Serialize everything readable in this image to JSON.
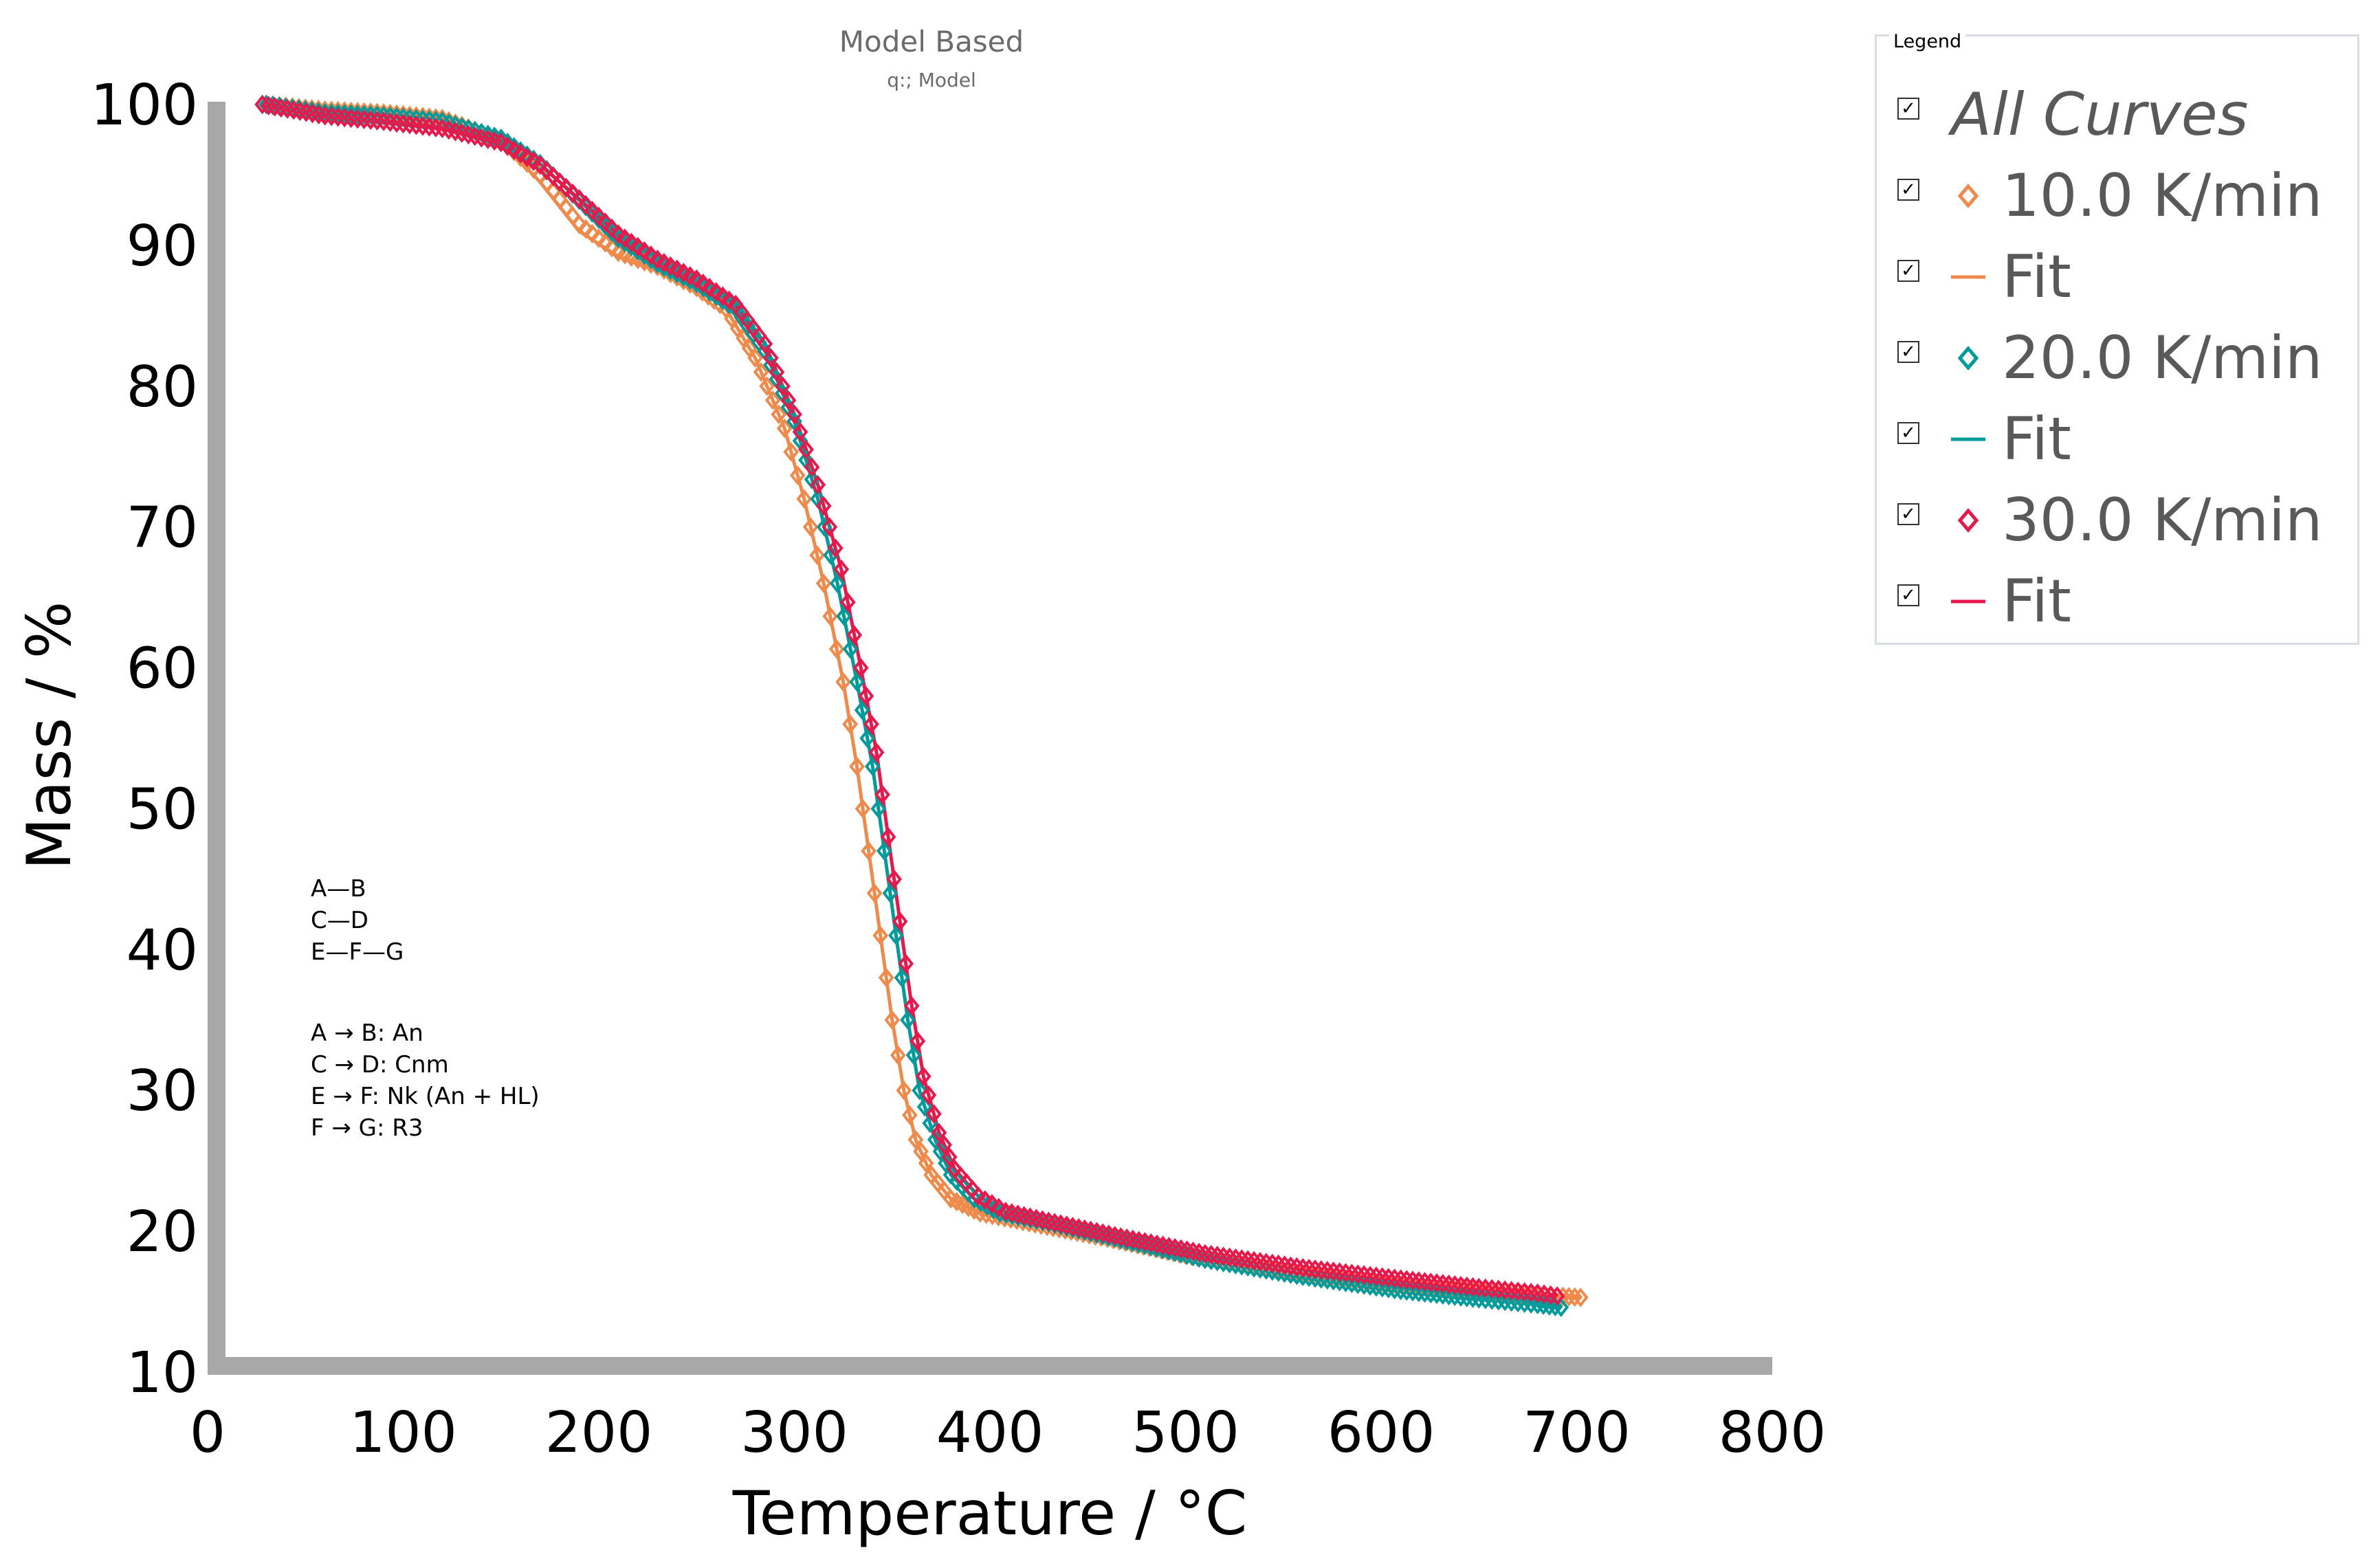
{
  "chart_data": {
    "type": "scatter",
    "title": "Model Based",
    "subtitle": "q:; Model",
    "xlabel": "Temperature / °C",
    "ylabel": "Mass / %",
    "xlim": [
      0,
      800
    ],
    "ylim": [
      10,
      100
    ],
    "xticks": [
      0,
      100,
      200,
      300,
      400,
      500,
      600,
      700,
      800
    ],
    "yticks": [
      10,
      20,
      30,
      40,
      50,
      60,
      70,
      80,
      90,
      100
    ],
    "grid": false,
    "legend_position": "top-right",
    "annotations": {
      "scheme": [
        "A—B",
        "C—D",
        "E—F—G"
      ],
      "steps": [
        "A → B: An",
        "C → D: Cnm",
        "E → F: Nk (An + HL)",
        "F → G: R3"
      ]
    },
    "series": [
      {
        "name": "10.0 K/min",
        "kind": "measured",
        "marker": "diamond",
        "color": "#f08a4b",
        "x": [
          30,
          60,
          90,
          120,
          150,
          170,
          190,
          210,
          230,
          250,
          265,
          280,
          295,
          305,
          315,
          325,
          332,
          338,
          344,
          350,
          356,
          362,
          370,
          380,
          395,
          420,
          460,
          500,
          550,
          600,
          650,
          690,
          702
        ],
        "y": [
          100,
          99.6,
          99.4,
          99,
          97.5,
          95,
          91.5,
          89.5,
          88.5,
          87,
          85.5,
          82,
          77,
          72,
          66,
          59,
          53,
          47,
          41,
          35,
          30,
          26.5,
          24,
          22.3,
          21.3,
          20.6,
          19.5,
          18.3,
          17.2,
          16.3,
          15.7,
          15.4,
          15.3
        ]
      },
      {
        "name": "Fit",
        "kind": "fit",
        "color": "#f08a4b",
        "x": [
          30,
          60,
          90,
          120,
          150,
          170,
          190,
          210,
          230,
          250,
          265,
          280,
          295,
          305,
          315,
          325,
          332,
          338,
          344,
          350,
          356,
          362,
          370,
          380,
          395,
          420,
          460,
          500,
          550,
          600,
          650,
          690,
          702
        ],
        "y": [
          100,
          99.6,
          99.4,
          99,
          97.4,
          94.5,
          91,
          89.2,
          88.3,
          87,
          85.5,
          82,
          77,
          72,
          66,
          59,
          53,
          47,
          41,
          35,
          30,
          26.5,
          24,
          22.3,
          21.3,
          20.6,
          19.5,
          18.3,
          17.2,
          16.3,
          15.7,
          15.4,
          15.3
        ]
      },
      {
        "name": "20.0 K/min",
        "kind": "measured",
        "marker": "diamond",
        "color": "#009b9b",
        "x": [
          30,
          60,
          90,
          120,
          150,
          170,
          190,
          210,
          230,
          250,
          270,
          285,
          300,
          312,
          322,
          332,
          340,
          346,
          352,
          358,
          364,
          372,
          380,
          392,
          405,
          430,
          470,
          510,
          560,
          610,
          650,
          680,
          692
        ],
        "y": [
          100,
          99.4,
          99.2,
          98.8,
          97.6,
          95.8,
          93.2,
          90.5,
          88.7,
          87.3,
          85.5,
          82.5,
          77.5,
          72,
          66,
          59,
          53,
          47,
          41,
          35,
          30,
          26.5,
          24,
          22.3,
          21.3,
          20.6,
          19.3,
          18,
          16.8,
          15.8,
          15.2,
          14.8,
          14.6
        ]
      },
      {
        "name": "Fit",
        "kind": "fit",
        "color": "#009b9b",
        "x": [
          30,
          60,
          90,
          120,
          150,
          170,
          190,
          210,
          230,
          250,
          270,
          285,
          300,
          312,
          322,
          332,
          340,
          346,
          352,
          358,
          364,
          372,
          380,
          392,
          405,
          430,
          470,
          510,
          560,
          610,
          650,
          680,
          692
        ],
        "y": [
          100,
          99.4,
          99.2,
          98.8,
          97.6,
          95.8,
          93.2,
          90.5,
          88.7,
          87.3,
          85.5,
          82.5,
          77.5,
          72,
          66,
          59,
          53,
          47,
          41,
          35,
          30,
          26.5,
          24,
          22.3,
          21.3,
          20.6,
          19.3,
          18,
          16.8,
          15.8,
          15.2,
          14.8,
          14.6
        ]
      },
      {
        "name": "30.0 K/min",
        "kind": "measured",
        "marker": "diamond",
        "color": "#e8194a",
        "x": [
          28,
          60,
          90,
          120,
          150,
          170,
          190,
          210,
          230,
          250,
          270,
          285,
          300,
          312,
          324,
          334,
          342,
          348,
          354,
          360,
          366,
          374,
          382,
          394,
          408,
          430,
          470,
          510,
          560,
          610,
          650,
          680,
          690
        ],
        "y": [
          100,
          99.2,
          98.8,
          98.3,
          97.3,
          95.7,
          93.3,
          90.8,
          89,
          87.6,
          85.8,
          83,
          78,
          73,
          67,
          60,
          54,
          48,
          42,
          36,
          31,
          27,
          24.4,
          22.5,
          21.4,
          20.7,
          19.5,
          18.4,
          17.4,
          16.6,
          16,
          15.6,
          15.4
        ]
      },
      {
        "name": "Fit",
        "kind": "fit",
        "color": "#e8194a",
        "x": [
          28,
          60,
          90,
          120,
          150,
          170,
          190,
          210,
          230,
          250,
          270,
          285,
          300,
          312,
          324,
          334,
          342,
          348,
          354,
          360,
          366,
          374,
          382,
          394,
          408,
          430,
          470,
          510,
          560,
          610,
          650,
          680,
          690
        ],
        "y": [
          100,
          99.2,
          98.8,
          98.3,
          97.3,
          95.7,
          93.3,
          90.8,
          89,
          87.6,
          85.8,
          83,
          78,
          73,
          67,
          60,
          54,
          48,
          42,
          36,
          31,
          27,
          24.4,
          22.5,
          21.4,
          20.7,
          19.5,
          18.4,
          17.4,
          16.6,
          16,
          15.6,
          15.4
        ]
      }
    ]
  },
  "legend": {
    "title": "Legend",
    "items": [
      {
        "label": "All Curves",
        "symbol": "none",
        "color": "#595959",
        "checked": "✓"
      },
      {
        "label": "10.0 K/min",
        "symbol": "diamond",
        "color": "#f08a4b",
        "checked": "✓"
      },
      {
        "label": "Fit",
        "symbol": "line",
        "color": "#f08a4b",
        "checked": "✓"
      },
      {
        "label": "20.0 K/min",
        "symbol": "diamond",
        "color": "#009b9b",
        "checked": "✓"
      },
      {
        "label": "Fit",
        "symbol": "line",
        "color": "#009b9b",
        "checked": "✓"
      },
      {
        "label": "30.0 K/min",
        "symbol": "diamond",
        "color": "#e8194a",
        "checked": "✓"
      },
      {
        "label": "Fit",
        "symbol": "line",
        "color": "#e8194a",
        "checked": "✓"
      }
    ]
  }
}
